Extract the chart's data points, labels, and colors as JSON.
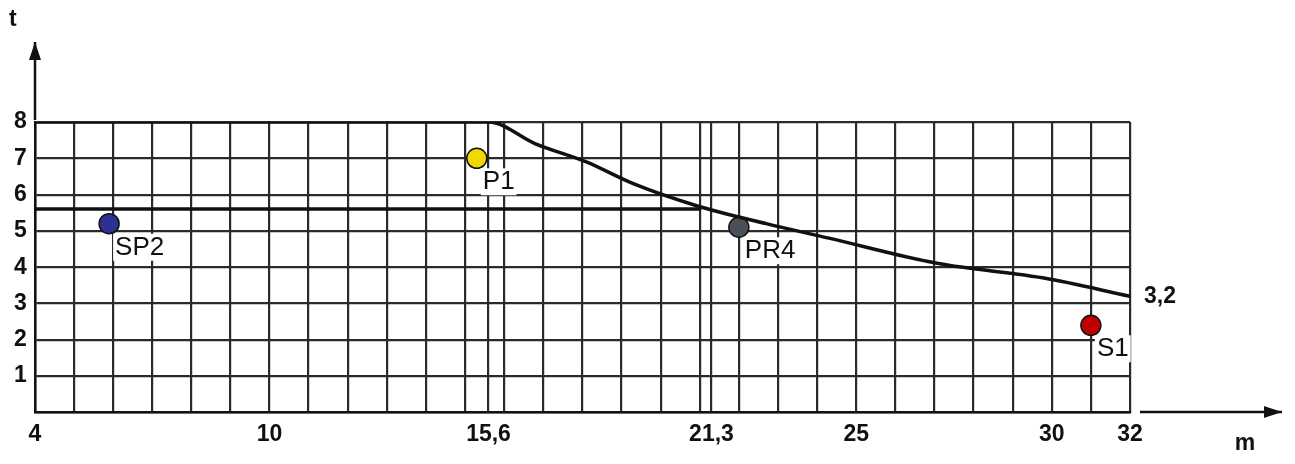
{
  "chart_data": {
    "type": "line",
    "xlabel": "m",
    "ylabel": "t",
    "xlim": [
      4,
      32
    ],
    "ylim": [
      0,
      8
    ],
    "grid": true,
    "legend": false,
    "xticks": [
      4,
      {
        "value": 5,
        "label": null
      },
      {
        "value": 6,
        "label": null
      },
      {
        "value": 7,
        "label": null
      },
      {
        "value": 8,
        "label": null
      },
      {
        "value": 9,
        "label": null
      },
      10,
      {
        "value": 11,
        "label": null
      },
      {
        "value": 12,
        "label": null
      },
      {
        "value": 13,
        "label": null
      },
      {
        "value": 14,
        "label": null
      },
      {
        "value": 15,
        "label": null
      },
      {
        "value": 15.6,
        "label": "15,6"
      },
      {
        "value": 16,
        "label": null
      },
      {
        "value": 17,
        "label": null
      },
      {
        "value": 18,
        "label": null
      },
      {
        "value": 19,
        "label": null
      },
      {
        "value": 20,
        "label": null
      },
      {
        "value": 21,
        "label": null
      },
      {
        "value": 21.3,
        "label": "21,3"
      },
      {
        "value": 22,
        "label": null
      },
      {
        "value": 23,
        "label": null
      },
      {
        "value": 24,
        "label": null
      },
      25,
      {
        "value": 26,
        "label": null
      },
      {
        "value": 27,
        "label": null
      },
      {
        "value": 28,
        "label": null
      },
      {
        "value": 29,
        "label": null
      },
      30,
      {
        "value": 31,
        "label": null
      },
      32
    ],
    "yticks": [
      {
        "value": 0,
        "label": null
      },
      1,
      2,
      3,
      4,
      5,
      6,
      7,
      8
    ],
    "annotations": [
      {
        "text": "3,2",
        "x": 32,
        "y": 3.2
      }
    ],
    "series": [
      {
        "color": "#111111",
        "x": [
          4,
          15.6,
          16.8,
          18.1,
          19.3,
          20.9,
          22.7,
          24.3,
          27.1,
          29.8,
          32
        ],
        "values": [
          8,
          8,
          7.4,
          6.9,
          6.3,
          5.7,
          5.2,
          4.8,
          4.1,
          3.7,
          3.2
        ]
      },
      {
        "color": "#111111",
        "x": [
          4,
          21
        ],
        "values": [
          5.6,
          5.6
        ]
      },
      {
        "type": "scatter",
        "marker": "circle",
        "name": "SP2",
        "color": "#2e3192",
        "x": [
          5.9
        ],
        "values": [
          5.2
        ]
      },
      {
        "type": "scatter",
        "marker": "circle",
        "name": "P1",
        "color": "#f0d800",
        "x": [
          15.3
        ],
        "values": [
          7.0
        ]
      },
      {
        "type": "scatter",
        "marker": "circle",
        "name": "PR4",
        "color": "#4a5058",
        "x": [
          22.0
        ],
        "values": [
          5.1
        ]
      },
      {
        "type": "scatter",
        "marker": "circle",
        "name": "S1",
        "color": "#c00000",
        "x": [
          31.0
        ],
        "values": [
          2.4
        ]
      }
    ]
  }
}
